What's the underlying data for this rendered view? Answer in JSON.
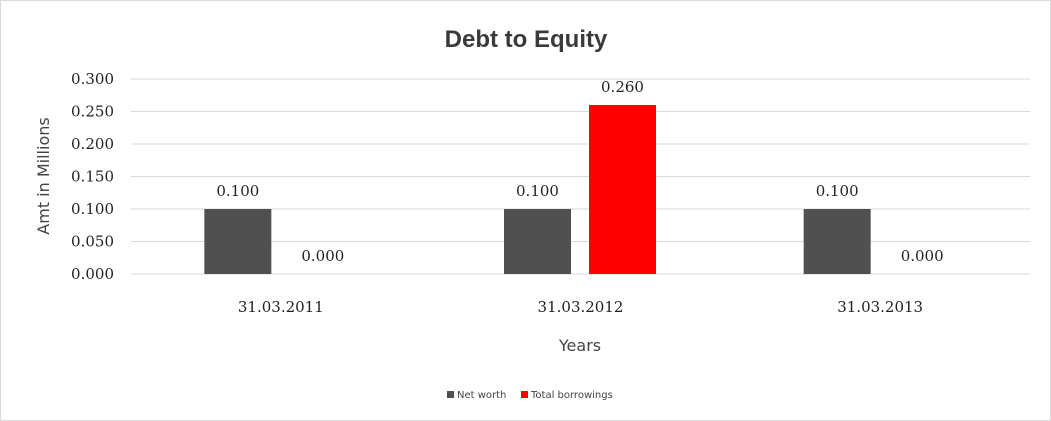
{
  "chart_data": {
    "type": "bar",
    "title": "Debt to Equity",
    "xlabel": "Years",
    "ylabel": "Amt in Millions",
    "categories": [
      "31.03.2011",
      "31.03.2012",
      "31.03.2013"
    ],
    "series": [
      {
        "name": "Net worth",
        "values": [
          0.1,
          0.1,
          0.1
        ],
        "color": "#505050"
      },
      {
        "name": "Total borrowings",
        "values": [
          0.0,
          0.26,
          0.0
        ],
        "color": "#ff0000"
      }
    ],
    "ylim": [
      0,
      0.3
    ],
    "yticks": [
      "0.000",
      "0.050",
      "0.100",
      "0.150",
      "0.200",
      "0.250",
      "0.300"
    ],
    "grid": true,
    "legend": "bottom",
    "data_labels": true
  }
}
